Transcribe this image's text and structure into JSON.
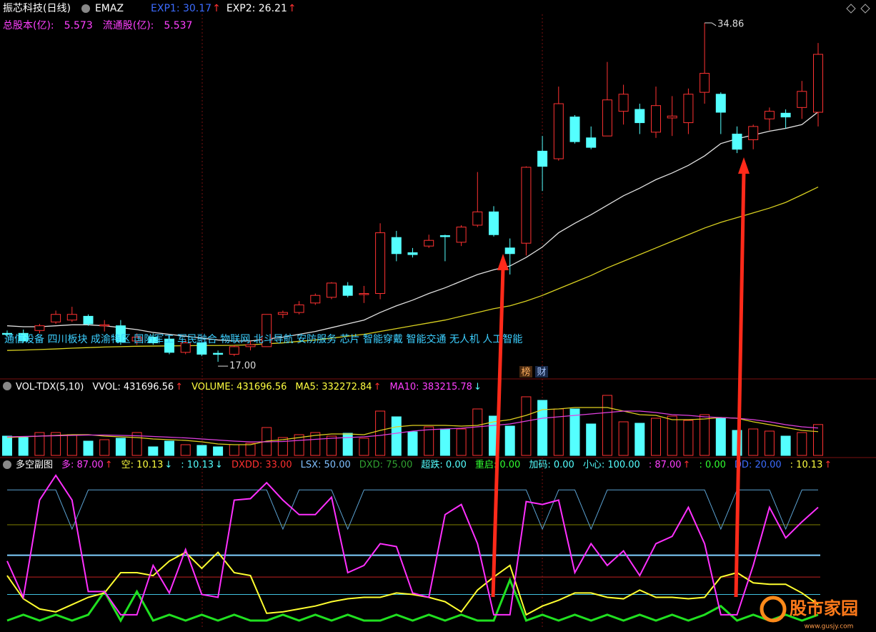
{
  "header": {
    "title": "振芯科技(日线)",
    "indicator": "EMAZ",
    "items": [
      {
        "text": "EXP1: 30.17",
        "color": "#3c6cff",
        "arrow": "↑",
        "arrow_color": "#ff3030"
      },
      {
        "text": "EXP2: 26.21",
        "color": "#ffffff",
        "arrow": "↑",
        "arrow_color": "#ff3030"
      }
    ],
    "shares": [
      {
        "text": "总股本(亿):",
        "color": "#ff40ff"
      },
      {
        "text": "5.573",
        "color": "#ff40ff"
      },
      {
        "text": "流通股(亿):",
        "color": "#ff40ff"
      },
      {
        "text": "5.537",
        "color": "#ff40ff"
      }
    ]
  },
  "sectors": "通信设备 四川板块 成渝特区 国防军工 军民融合 物联网 北斗导航 安防服务 芯片 智能穿戴 智能交通 无人机 人工智能",
  "buttons": [
    "榜",
    "财"
  ],
  "watermark": {
    "title": "股市家园",
    "url": "www.gusjy.com"
  },
  "chart_data": [
    {
      "type": "candlestick",
      "open": [
        18.5,
        18.5,
        18.65,
        19.1,
        19.2,
        19.4,
        18.9,
        18.9,
        18.1,
        18.3,
        18.2,
        17.5,
        18.0,
        17.45,
        17.4,
        17.8,
        17.8,
        19.5,
        19.6,
        20.1,
        20.4,
        21.0,
        20.6,
        20.6,
        23.55,
        22.75,
        23.1,
        23.65,
        23.3,
        24.2,
        24.9,
        23.0,
        23.25,
        28.1,
        27.7,
        29.9,
        28.8,
        28.9,
        30.2,
        30.3,
        29.1,
        29.85,
        29.6,
        31.2,
        31.1,
        29.0,
        28.7,
        29.8,
        30.1,
        30.4,
        30.15
      ],
      "high": [
        18.65,
        18.7,
        19.0,
        19.7,
        19.9,
        19.5,
        19.2,
        19.2,
        18.5,
        18.5,
        18.4,
        18.2,
        18.1,
        17.6,
        17.9,
        18.1,
        19.5,
        19.7,
        20.2,
        20.6,
        21.2,
        21.2,
        21.0,
        24.3,
        23.9,
        23.0,
        23.7,
        23.7,
        24.2,
        27.0,
        25.2,
        23.5,
        27.3,
        28.9,
        31.5,
        30.0,
        29.4,
        32.8,
        31.6,
        30.6,
        31.5,
        31.0,
        31.4,
        34.86,
        31.2,
        29.4,
        29.5,
        30.4,
        30.3,
        31.8,
        33.8
      ],
      "low": [
        18.3,
        18.0,
        18.5,
        19.0,
        19.1,
        18.9,
        18.6,
        17.9,
        17.9,
        17.9,
        17.4,
        17.4,
        17.3,
        17.0,
        17.3,
        17.6,
        17.8,
        19.3,
        19.5,
        20.0,
        20.3,
        20.4,
        20.1,
        20.3,
        22.3,
        22.5,
        23.0,
        22.3,
        23.1,
        24.1,
        23.6,
        21.6,
        22.6,
        26.0,
        27.6,
        28.5,
        28.2,
        28.9,
        29.5,
        29.0,
        28.8,
        28.9,
        29.0,
        30.6,
        29.0,
        28.0,
        28.2,
        29.2,
        29.3,
        29.8,
        29.4
      ],
      "close": [
        18.45,
        18.1,
        18.9,
        19.5,
        19.5,
        19.0,
        18.95,
        18.05,
        18.3,
        18.0,
        17.5,
        18.0,
        17.4,
        17.4,
        17.8,
        17.9,
        19.5,
        19.6,
        20.0,
        20.5,
        21.15,
        20.5,
        20.6,
        23.8,
        22.7,
        22.65,
        23.4,
        23.6,
        24.1,
        24.9,
        23.7,
        22.7,
        27.25,
        27.3,
        30.6,
        28.6,
        28.3,
        30.8,
        31.1,
        29.6,
        30.5,
        29.95,
        31.1,
        32.2,
        30.15,
        28.2,
        29.4,
        30.2,
        29.9,
        31.25,
        33.2
      ],
      "up_color": "#ff3232",
      "down_color": "#54ffff",
      "ylim": [
        16.1,
        35.31
      ],
      "max_label": "34.86",
      "min_label": "17.00",
      "series": [
        {
          "color": "#e0e0e0",
          "values": [
            18.9,
            18.85,
            18.85,
            18.9,
            18.95,
            18.95,
            18.9,
            18.8,
            18.7,
            18.55,
            18.45,
            18.35,
            18.25,
            18.15,
            18.1,
            18.1,
            18.2,
            18.3,
            18.45,
            18.6,
            18.8,
            19.0,
            19.2,
            19.6,
            19.95,
            20.25,
            20.6,
            20.9,
            21.25,
            21.6,
            21.85,
            22.05,
            22.5,
            23.05,
            23.8,
            24.3,
            24.75,
            25.25,
            25.75,
            26.15,
            26.6,
            26.95,
            27.35,
            27.85,
            28.5,
            28.75,
            28.95,
            29.15,
            29.3,
            29.5,
            30.17
          ]
        },
        {
          "color": "#d8d020",
          "values": [
            17.6,
            17.62,
            17.65,
            17.68,
            17.72,
            17.75,
            17.78,
            17.8,
            17.82,
            17.83,
            17.84,
            17.85,
            17.86,
            17.86,
            17.87,
            17.9,
            17.95,
            18.0,
            18.08,
            18.15,
            18.25,
            18.35,
            18.45,
            18.6,
            18.75,
            18.9,
            19.05,
            19.2,
            19.4,
            19.6,
            19.8,
            19.95,
            20.2,
            20.5,
            20.85,
            21.2,
            21.55,
            21.95,
            22.3,
            22.65,
            23.0,
            23.35,
            23.7,
            24.05,
            24.35,
            24.6,
            24.85,
            25.1,
            25.4,
            25.8,
            26.21
          ]
        }
      ]
    },
    {
      "type": "bar",
      "title": "VOL-TDX(5,10)",
      "header": [
        {
          "text": "VVOL: 431696.56",
          "color": "#ffffff",
          "arrow": "↑",
          "arrow_color": "#ff3030"
        },
        {
          "text": "VOLUME: 431696.56",
          "color": "#ffff40"
        },
        {
          "text": "MA5: 332272.84",
          "color": "#ffff40",
          "arrow": "↑",
          "arrow_color": "#ff3030"
        },
        {
          "text": "MA10: 383215.78",
          "color": "#ff40ff",
          "arrow": "↓",
          "arrow_color": "#54ffff"
        }
      ],
      "values": [
        270000,
        250000,
        320000,
        320000,
        290000,
        200000,
        220000,
        240000,
        320000,
        120000,
        200000,
        150000,
        140000,
        120000,
        150000,
        170000,
        390000,
        250000,
        290000,
        320000,
        270000,
        310000,
        240000,
        620000,
        540000,
        330000,
        400000,
        370000,
        370000,
        650000,
        550000,
        410000,
        820000,
        770000,
        650000,
        650000,
        440000,
        840000,
        470000,
        450000,
        520000,
        550000,
        490000,
        570000,
        520000,
        350000,
        370000,
        340000,
        270000,
        320000,
        431696.56
      ],
      "ylim": [
        0,
        900000
      ],
      "series": [
        {
          "color": "#e0d020",
          "values": [
            250000,
            260000,
            270000,
            280000,
            290000,
            290000,
            270000,
            260000,
            250000,
            230000,
            220000,
            210000,
            190000,
            160000,
            150000,
            150000,
            200000,
            220000,
            250000,
            280000,
            300000,
            300000,
            290000,
            350000,
            400000,
            420000,
            420000,
            420000,
            410000,
            420000,
            470000,
            500000,
            560000,
            640000,
            650000,
            670000,
            670000,
            670000,
            620000,
            570000,
            560000,
            500000,
            500000,
            510000,
            530000,
            520000,
            470000,
            430000,
            390000,
            350000,
            332272.84
          ]
        },
        {
          "color": "#e040e0",
          "values": [
            260000,
            265000,
            270000,
            275000,
            280000,
            285000,
            285000,
            280000,
            275000,
            265000,
            255000,
            245000,
            230000,
            215000,
            200000,
            190000,
            190000,
            195000,
            210000,
            225000,
            240000,
            250000,
            260000,
            280000,
            310000,
            340000,
            360000,
            370000,
            380000,
            400000,
            420000,
            440000,
            480000,
            520000,
            540000,
            560000,
            580000,
            600000,
            620000,
            620000,
            600000,
            570000,
            560000,
            540000,
            530000,
            520000,
            500000,
            470000,
            430000,
            400000,
            383215.78
          ]
        }
      ]
    },
    {
      "type": "line",
      "title": "多空副图",
      "header": [
        {
          "text": "多: 87.00",
          "color": "#ff40ff",
          "arrow": "↑",
          "arrow_color": "#ff3030"
        },
        {
          "text": "空: 10.13",
          "color": "#ffff40",
          "arrow": "↓",
          "arrow_color": "#54ffff"
        },
        {
          "text": ": 10.13",
          "color": "#54ffff",
          "arrow": "↓",
          "arrow_color": "#54ffff"
        },
        {
          "text": "DXDD: 33.00",
          "color": "#ff3030"
        },
        {
          "text": "LSX: 50.00",
          "color": "#80c0ff"
        },
        {
          "text": "DXD: 75.00",
          "color": "#30a030"
        },
        {
          "text": "超跌: 0.00",
          "color": "#54ffff"
        },
        {
          "text": "重启: 0.00",
          "color": "#30ff30"
        },
        {
          "text": "加码: 0.00",
          "color": "#54ffff"
        },
        {
          "text": "小心: 100.00",
          "color": "#54ffff"
        },
        {
          "text": ": 87.00",
          "color": "#ff40ff",
          "arrow": "↑",
          "arrow_color": "#ff3030"
        },
        {
          "text": ": 0.00",
          "color": "#30ff30"
        },
        {
          "text": "DD: 20.00",
          "color": "#3c6cff"
        },
        {
          "text": ": 10.13",
          "color": "#ffff40",
          "arrow": "↑",
          "arrow_color": "#ff3030"
        }
      ],
      "ylim": [
        0,
        100
      ],
      "levels": [
        {
          "value": 66,
          "color": "#808000"
        },
        {
          "value": 45,
          "color": "#80d0ff"
        },
        {
          "value": 30,
          "color": "#c02020"
        },
        {
          "value": 18,
          "color": "#40c0e0"
        }
      ],
      "series": [
        {
          "color": "#5aa0d0",
          "width": 1,
          "values": [
            90,
            90,
            90,
            90,
            63,
            90,
            90,
            90,
            90,
            90,
            90,
            90,
            90,
            90,
            90,
            90,
            90,
            63,
            90,
            90,
            90,
            63,
            90,
            90,
            90,
            90,
            90,
            90,
            90,
            90,
            90,
            90,
            90,
            63,
            90,
            90,
            63,
            90,
            90,
            90,
            90,
            90,
            90,
            90,
            63,
            90,
            90,
            90,
            63,
            90,
            90
          ]
        },
        {
          "color": "#20e020",
          "width": 3,
          "values": [
            0,
            4,
            0,
            4,
            0,
            4,
            20,
            0,
            20,
            0,
            4,
            0,
            4,
            0,
            4,
            0,
            0,
            4,
            0,
            4,
            0,
            4,
            0,
            0,
            4,
            0,
            4,
            0,
            4,
            0,
            0,
            28,
            0,
            4,
            0,
            4,
            0,
            4,
            0,
            4,
            0,
            4,
            0,
            4,
            10,
            0,
            4,
            0,
            4,
            0,
            4
          ]
        },
        {
          "color": "#ffff30",
          "width": 2,
          "values": [
            31,
            15,
            8,
            6,
            11,
            16,
            19,
            33,
            33,
            31,
            41,
            47,
            36,
            47,
            33,
            31,
            5,
            6,
            8,
            10,
            13,
            15,
            16,
            16,
            19,
            18,
            16,
            13,
            6,
            21,
            30,
            38,
            4,
            10,
            14,
            19,
            19,
            16,
            15,
            21,
            16,
            16,
            15,
            16,
            30,
            33,
            26,
            25,
            25,
            19,
            11
          ]
        },
        {
          "color": "#ff30ff",
          "width": 2,
          "values": [
            41,
            16,
            83,
            100,
            83,
            20,
            20,
            4,
            4,
            38,
            19,
            49,
            18,
            16,
            83,
            84,
            95,
            83,
            73,
            73,
            85,
            33,
            38,
            53,
            51,
            19,
            16,
            73,
            80,
            53,
            4,
            4,
            82,
            80,
            83,
            33,
            53,
            38,
            48,
            31,
            53,
            58,
            78,
            53,
            4,
            4,
            38,
            78,
            57,
            68,
            78
          ]
        }
      ]
    }
  ]
}
